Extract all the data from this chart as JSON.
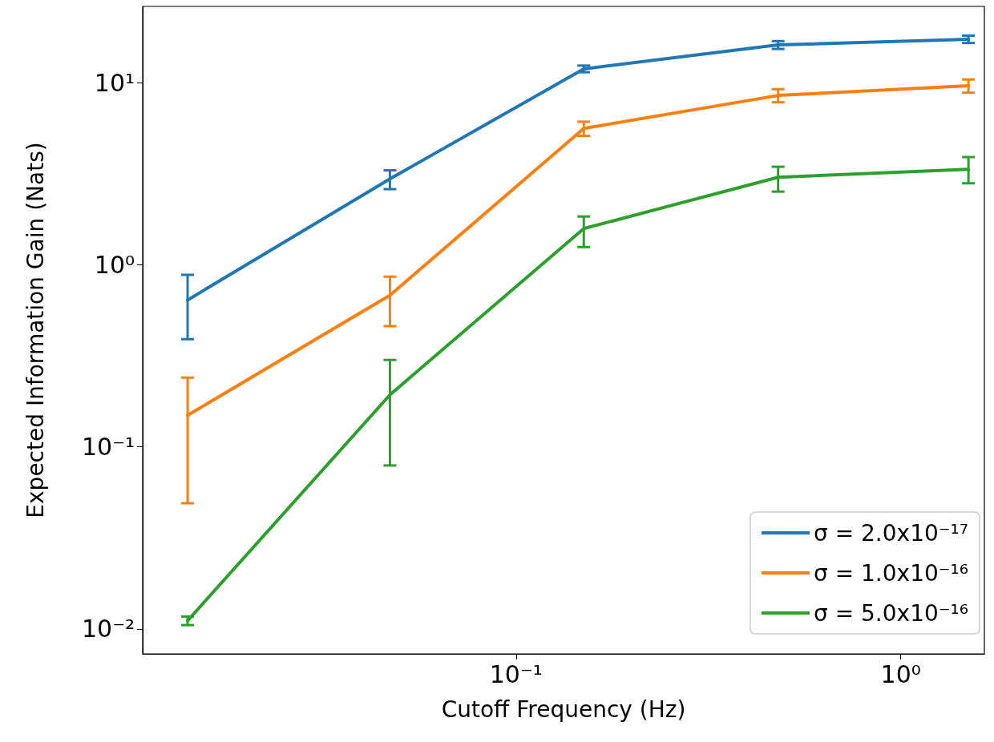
{
  "chart_data": {
    "type": "line",
    "xlabel": "Cutoff Frequency (Hz)",
    "ylabel": "Expected Information Gain (Nats)",
    "x": [
      0.014,
      0.047,
      0.15,
      0.48,
      1.5
    ],
    "series": [
      {
        "name": "σ = 2.0x10⁻¹⁷",
        "color": "#1f77b4",
        "values": [
          0.64,
          2.96,
          11.9,
          16.1,
          17.3
        ],
        "errors": [
          [
            0.39,
            0.88
          ],
          [
            2.6,
            3.3
          ],
          [
            11.4,
            12.4
          ],
          [
            15.3,
            16.9
          ],
          [
            16.5,
            18.1
          ]
        ]
      },
      {
        "name": "σ = 1.0x10⁻¹⁶",
        "color": "#ff7f0e",
        "values": [
          0.149,
          0.68,
          5.6,
          8.5,
          9.6
        ],
        "errors": [
          [
            0.049,
            0.24
          ],
          [
            0.46,
            0.86
          ],
          [
            5.1,
            6.1
          ],
          [
            7.8,
            9.2
          ],
          [
            8.8,
            10.4
          ]
        ]
      },
      {
        "name": "σ = 5.0x10⁻¹⁶",
        "color": "#2ca02c",
        "values": [
          0.0111,
          0.193,
          1.58,
          3.02,
          3.34
        ],
        "errors": [
          [
            0.0105,
            0.0117
          ],
          [
            0.079,
            0.3
          ],
          [
            1.25,
            1.84
          ],
          [
            2.52,
            3.45
          ],
          [
            2.8,
            3.9
          ]
        ]
      }
    ],
    "log": "xy",
    "xlim": [
      0.0107,
      1.65
    ],
    "ylim": [
      0.0073,
      26.2
    ],
    "xticks": [
      {
        "value": 0.1,
        "label": "10⁻¹"
      },
      {
        "value": 1,
        "label": "10⁰"
      }
    ],
    "yticks": [
      {
        "value": 0.01,
        "label": "10⁻²"
      },
      {
        "value": 0.1,
        "label": "10⁻¹"
      },
      {
        "value": 1,
        "label": "10⁰"
      },
      {
        "value": 10,
        "label": "10¹"
      }
    ],
    "legend": "bottom right",
    "marker": "none",
    "line_style": "solid"
  }
}
